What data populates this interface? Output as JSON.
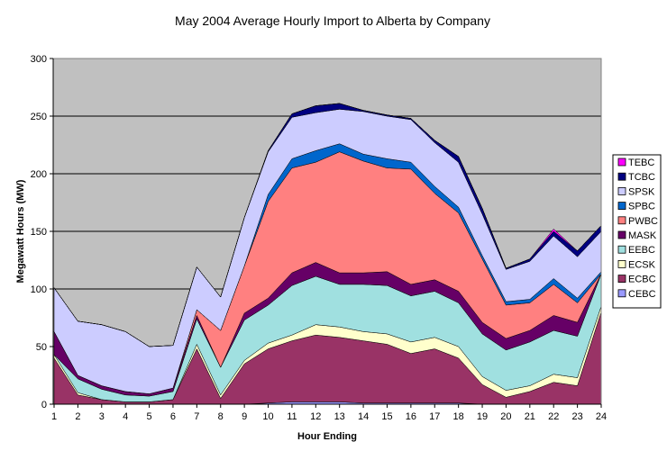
{
  "chart_data": {
    "type": "area",
    "stacked": true,
    "title": "May 2004 Average Hourly Import to Alberta by Company",
    "xlabel": "Hour Ending",
    "ylabel": "Megawatt Hours (MW)",
    "ylim": [
      0,
      300
    ],
    "yticks": [
      0,
      50,
      100,
      150,
      200,
      250,
      300
    ],
    "grid": true,
    "legend_position": "right",
    "plot_background": "#C0C0C0",
    "categories": [
      "1",
      "2",
      "3",
      "4",
      "5",
      "6",
      "7",
      "8",
      "9",
      "10",
      "11",
      "12",
      "13",
      "14",
      "15",
      "16",
      "17",
      "18",
      "19",
      "20",
      "21",
      "22",
      "23",
      "24"
    ],
    "series": [
      {
        "name": "CEBC",
        "color": "#9999FF",
        "values": [
          0,
          0,
          0,
          0,
          0,
          0,
          0,
          0,
          0,
          1,
          2,
          2,
          2,
          1,
          1,
          1,
          1,
          1,
          0,
          0,
          0,
          0,
          0,
          0
        ]
      },
      {
        "name": "ECBC",
        "color": "#993366",
        "values": [
          40,
          8,
          4,
          2,
          2,
          4,
          48,
          5,
          35,
          47,
          53,
          58,
          56,
          54,
          51,
          43,
          47,
          39,
          17,
          6,
          11,
          19,
          16,
          80
        ]
      },
      {
        "name": "ECSK",
        "color": "#FFFFCC",
        "values": [
          3,
          2,
          0,
          0,
          0,
          0,
          4,
          3,
          3,
          5,
          5,
          9,
          9,
          8,
          9,
          10,
          10,
          10,
          7,
          6,
          5,
          7,
          7,
          5
        ]
      },
      {
        "name": "EEBC",
        "color": "#A0E0E0",
        "values": [
          0,
          12,
          9,
          6,
          5,
          7,
          22,
          24,
          35,
          33,
          43,
          42,
          37,
          41,
          42,
          40,
          40,
          38,
          37,
          35,
          38,
          38,
          36,
          28
        ]
      },
      {
        "name": "MASK",
        "color": "#660066",
        "values": [
          20,
          3,
          3,
          3,
          2,
          3,
          3,
          0,
          6,
          6,
          11,
          12,
          10,
          10,
          12,
          10,
          10,
          10,
          10,
          10,
          10,
          13,
          12,
          0
        ]
      },
      {
        "name": "PWBC",
        "color": "#FF8080",
        "values": [
          0,
          0,
          0,
          0,
          0,
          0,
          5,
          32,
          41,
          84,
          91,
          87,
          105,
          97,
          90,
          100,
          75,
          68,
          55,
          29,
          24,
          27,
          17,
          0
        ]
      },
      {
        "name": "SPBC",
        "color": "#0066CC",
        "values": [
          0,
          0,
          0,
          0,
          0,
          0,
          0,
          0,
          0,
          6,
          8,
          10,
          7,
          6,
          8,
          6,
          6,
          5,
          3,
          3,
          3,
          5,
          4,
          2
        ]
      },
      {
        "name": "SPSK",
        "color": "#CCCCFF",
        "values": [
          38,
          47,
          53,
          52,
          41,
          37,
          37,
          29,
          42,
          37,
          36,
          33,
          30,
          37,
          37,
          37,
          38,
          39,
          36,
          28,
          33,
          37,
          36,
          35
        ]
      },
      {
        "name": "TCBC",
        "color": "#000080",
        "values": [
          0,
          0,
          0,
          0,
          0,
          0,
          0,
          0,
          0,
          1,
          3,
          6,
          5,
          1,
          1,
          1,
          2,
          5,
          5,
          1,
          2,
          4,
          5,
          5
        ]
      },
      {
        "name": "TEBC",
        "color": "#FF00FF",
        "values": [
          0,
          0,
          0,
          0,
          0,
          0,
          0,
          0,
          0,
          0,
          0,
          0,
          0,
          0,
          0,
          0,
          0,
          0,
          0,
          0,
          0,
          2,
          0,
          0
        ]
      }
    ]
  }
}
